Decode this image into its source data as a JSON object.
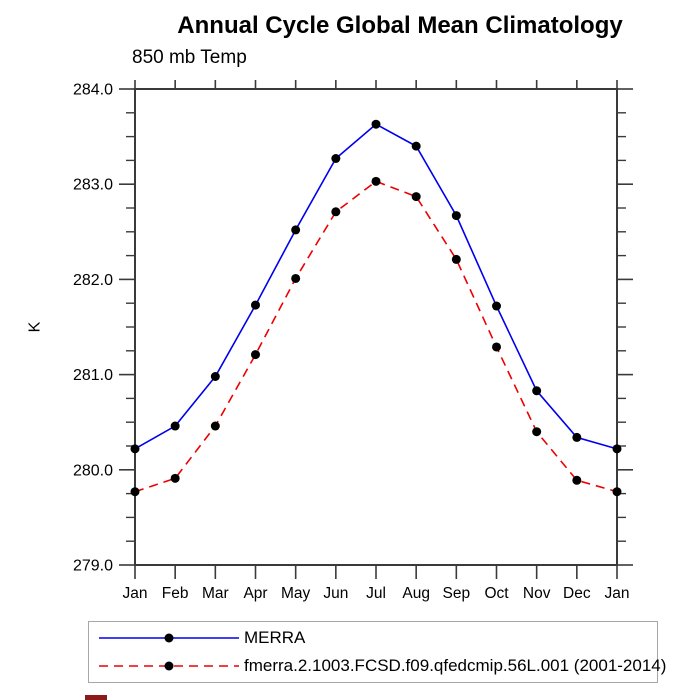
{
  "title": "Annual Cycle Global Mean Climatology",
  "subtitle": "850 mb Temp",
  "ylabel": "K",
  "legend": [
    {
      "label": "MERRA",
      "color": "#0000ee",
      "style": "solid"
    },
    {
      "label": "fmerra.2.1003.FCSD.f09.qfedcmip.56L.001 (2001-2014)",
      "color": "#ee0000",
      "style": "dashed"
    }
  ],
  "artifacts": {
    "bottom_mark_color": "#8B1A1A"
  },
  "chart_data": {
    "type": "line",
    "title": "Annual Cycle Global Mean Climatology",
    "subtitle": "850 mb Temp",
    "xlabel": "",
    "ylabel": "K",
    "categories": [
      "Jan",
      "Feb",
      "Mar",
      "Apr",
      "May",
      "Jun",
      "Jul",
      "Aug",
      "Sep",
      "Oct",
      "Nov",
      "Dec",
      "Jan"
    ],
    "series": [
      {
        "name": "MERRA",
        "color": "#0000ee",
        "style": "solid",
        "marker": "circle",
        "values": [
          280.22,
          280.46,
          280.98,
          281.73,
          282.52,
          283.27,
          283.63,
          283.4,
          282.67,
          281.72,
          280.83,
          280.34,
          280.22
        ]
      },
      {
        "name": "fmerra.2.1003.FCSD.f09.qfedcmip.56L.001 (2001-2014)",
        "color": "#ee0000",
        "style": "dashed",
        "marker": "circle",
        "values": [
          279.77,
          279.91,
          280.46,
          281.21,
          282.01,
          282.71,
          283.03,
          282.87,
          282.21,
          281.29,
          280.4,
          279.89,
          279.77
        ]
      }
    ],
    "ylim": [
      279.0,
      284.0
    ],
    "ytick_major": 1.0,
    "ytick_minor": 0.25,
    "ytick_labels": [
      "279.0",
      "280.0",
      "281.0",
      "282.0",
      "283.0",
      "284.0"
    ],
    "marker_color": "#000000",
    "axis_color": "#3a3a3a",
    "grid": false,
    "legend_position": "bottom-left"
  }
}
